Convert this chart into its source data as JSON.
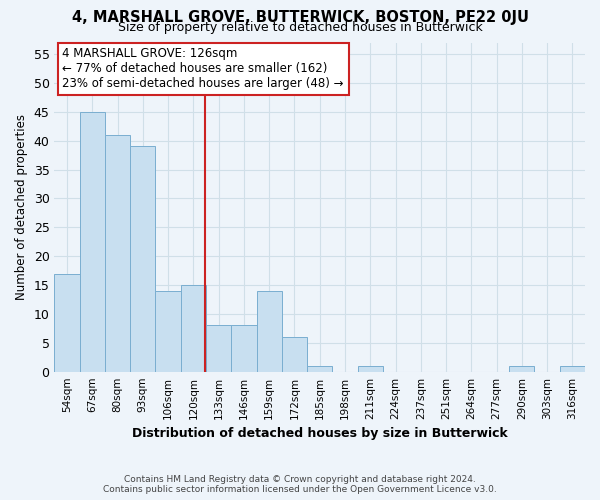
{
  "title": "4, MARSHALL GROVE, BUTTERWICK, BOSTON, PE22 0JU",
  "subtitle": "Size of property relative to detached houses in Butterwick",
  "xlabel": "Distribution of detached houses by size in Butterwick",
  "ylabel": "Number of detached properties",
  "bar_labels": [
    "54sqm",
    "67sqm",
    "80sqm",
    "93sqm",
    "106sqm",
    "120sqm",
    "133sqm",
    "146sqm",
    "159sqm",
    "172sqm",
    "185sqm",
    "198sqm",
    "211sqm",
    "224sqm",
    "237sqm",
    "251sqm",
    "264sqm",
    "277sqm",
    "290sqm",
    "303sqm",
    "316sqm"
  ],
  "bar_values": [
    17,
    45,
    41,
    39,
    14,
    15,
    8,
    8,
    14,
    6,
    1,
    0,
    1,
    0,
    0,
    0,
    0,
    0,
    1,
    0,
    1
  ],
  "bar_color": "#c8dff0",
  "bar_edge_color": "#7aaed0",
  "grid_color": "#d0dfe8",
  "background_color": "#eef4fa",
  "annotation_title": "4 MARSHALL GROVE: 126sqm",
  "annotation_line1": "← 77% of detached houses are smaller (162)",
  "annotation_line2": "23% of semi-detached houses are larger (48) →",
  "annotation_box_color": "#ffffff",
  "annotation_box_edge": "#cc2222",
  "property_line_color": "#cc2222",
  "ylim": [
    0,
    57
  ],
  "yticks": [
    0,
    5,
    10,
    15,
    20,
    25,
    30,
    35,
    40,
    45,
    50,
    55
  ],
  "footer_line1": "Contains HM Land Registry data © Crown copyright and database right 2024.",
  "footer_line2": "Contains public sector information licensed under the Open Government Licence v3.0."
}
